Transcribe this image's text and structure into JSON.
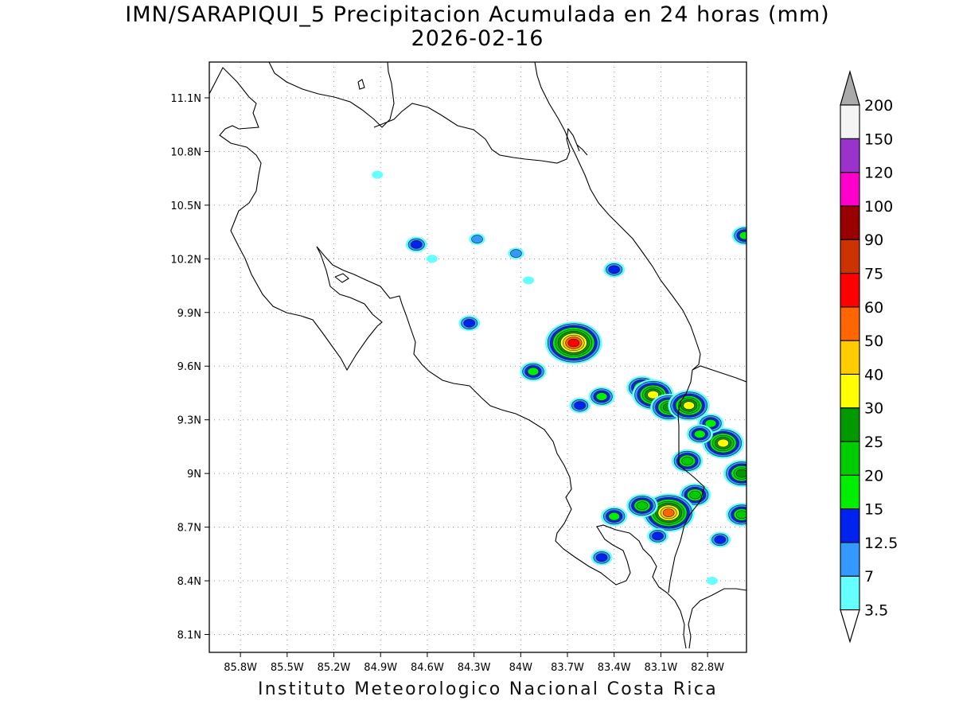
{
  "title": {
    "line1": "IMN/SARAPIQUI_5 Precipitacion Acumulada en 24 horas (mm)",
    "line2": "2026-02-16"
  },
  "footer": "Instituto Meteorologico Nacional Costa Rica",
  "map": {
    "lon_range": [
      -86.0,
      -82.55
    ],
    "lat_range": [
      8.0,
      11.3
    ],
    "x_ticks": [
      "85.8W",
      "85.5W",
      "85.2W",
      "84.9W",
      "84.6W",
      "84.3W",
      "84W",
      "83.7W",
      "83.4W",
      "83.1W",
      "82.8W"
    ],
    "x_values": [
      -85.8,
      -85.5,
      -85.2,
      -84.9,
      -84.6,
      -84.3,
      -84.0,
      -83.7,
      -83.4,
      -83.1,
      -82.8
    ],
    "y_ticks": [
      "11.1N",
      "10.8N",
      "10.5N",
      "10.2N",
      "9.9N",
      "9.6N",
      "9.3N",
      "9N",
      "8.7N",
      "8.4N",
      "8.1N"
    ],
    "y_values": [
      11.1,
      10.8,
      10.5,
      10.2,
      9.9,
      9.6,
      9.3,
      9.0,
      8.7,
      8.4,
      8.1
    ],
    "grid": true
  },
  "colorbar": {
    "labels": [
      "3.5",
      "7",
      "12.5",
      "15",
      "20",
      "25",
      "30",
      "40",
      "50",
      "60",
      "75",
      "90",
      "100",
      "120",
      "150",
      "200"
    ],
    "colors": [
      "#66ffff",
      "#3399ff",
      "#0022ee",
      "#00ee00",
      "#00cc00",
      "#009900",
      "#ffff00",
      "#ffcc00",
      "#ff6600",
      "#ff0000",
      "#cc3300",
      "#990000",
      "#ff00cc",
      "#9933cc",
      "#f4f4f4",
      "#aaaaaa"
    ]
  },
  "precip_cells": [
    {
      "lon": -84.67,
      "lat": 10.28,
      "level": 2
    },
    {
      "lon": -84.57,
      "lat": 10.2,
      "level": 0
    },
    {
      "lon": -84.28,
      "lat": 10.31,
      "level": 1
    },
    {
      "lon": -84.03,
      "lat": 10.23,
      "level": 1
    },
    {
      "lon": -83.95,
      "lat": 10.08,
      "level": 0
    },
    {
      "lon": -83.4,
      "lat": 10.14,
      "level": 2
    },
    {
      "lon": -83.66,
      "lat": 9.73,
      "level": 9
    },
    {
      "lon": -83.92,
      "lat": 9.57,
      "level": 3
    },
    {
      "lon": -83.48,
      "lat": 9.43,
      "level": 3
    },
    {
      "lon": -83.22,
      "lat": 9.48,
      "level": 4
    },
    {
      "lon": -83.15,
      "lat": 9.44,
      "level": 6
    },
    {
      "lon": -83.05,
      "lat": 9.37,
      "level": 5
    },
    {
      "lon": -82.92,
      "lat": 9.38,
      "level": 6
    },
    {
      "lon": -82.93,
      "lat": 9.07,
      "level": 4
    },
    {
      "lon": -82.7,
      "lat": 9.17,
      "level": 6
    },
    {
      "lon": -82.58,
      "lat": 9.0,
      "level": 5
    },
    {
      "lon": -82.88,
      "lat": 8.88,
      "level": 4
    },
    {
      "lon": -83.05,
      "lat": 8.78,
      "level": 8
    },
    {
      "lon": -83.22,
      "lat": 8.82,
      "level": 4
    },
    {
      "lon": -83.4,
      "lat": 8.76,
      "level": 3
    },
    {
      "lon": -83.48,
      "lat": 8.53,
      "level": 2
    },
    {
      "lon": -82.58,
      "lat": 8.77,
      "level": 4
    },
    {
      "lon": -82.72,
      "lat": 8.63,
      "level": 2
    },
    {
      "lon": -82.56,
      "lat": 10.33,
      "level": 3
    },
    {
      "lon": -82.78,
      "lat": 9.28,
      "level": 3
    },
    {
      "lon": -82.85,
      "lat": 9.22,
      "level": 3
    },
    {
      "lon": -84.33,
      "lat": 9.84,
      "level": 2
    },
    {
      "lon": -84.92,
      "lat": 10.67,
      "level": 0
    },
    {
      "lon": -83.62,
      "lat": 9.38,
      "level": 2
    },
    {
      "lon": -83.12,
      "lat": 8.65,
      "level": 2
    },
    {
      "lon": -82.77,
      "lat": 8.4,
      "level": 0
    }
  ]
}
